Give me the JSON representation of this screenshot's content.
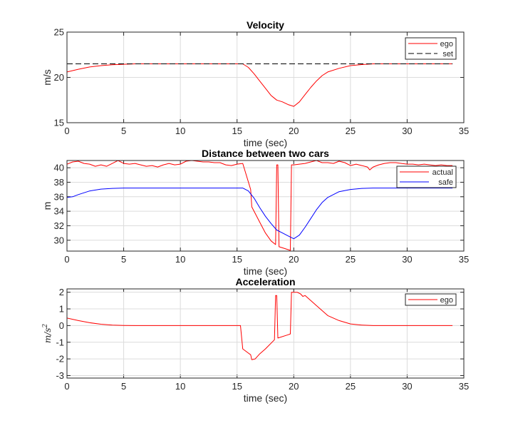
{
  "chart_data": [
    {
      "type": "line",
      "title": "Velocity",
      "xlabel": "time (sec)",
      "ylabel": "m/s",
      "xlim": [
        0,
        35
      ],
      "ylim": [
        15,
        25
      ],
      "xticks": [
        "0",
        "5",
        "10",
        "15",
        "20",
        "25",
        "30",
        "35"
      ],
      "yticks": [
        "15",
        "20",
        "25"
      ],
      "grid": true,
      "legend_position": "top-right",
      "series": [
        {
          "name": "ego",
          "color": "#ff0000",
          "dash": false,
          "points": [
            [
              0,
              20.6
            ],
            [
              1,
              20.9
            ],
            [
              2,
              21.15
            ],
            [
              3,
              21.3
            ],
            [
              4,
              21.4
            ],
            [
              5,
              21.45
            ],
            [
              6,
              21.5
            ],
            [
              15.5,
              21.5
            ],
            [
              16,
              21.1
            ],
            [
              16.5,
              20.4
            ],
            [
              17,
              19.6
            ],
            [
              17.5,
              18.8
            ],
            [
              18,
              18.0
            ],
            [
              18.5,
              17.5
            ],
            [
              19,
              17.3
            ],
            [
              19.5,
              17.0
            ],
            [
              20,
              16.8
            ],
            [
              20.5,
              17.3
            ],
            [
              21,
              18.1
            ],
            [
              21.5,
              18.9
            ],
            [
              22,
              19.6
            ],
            [
              22.5,
              20.2
            ],
            [
              23,
              20.6
            ],
            [
              24,
              21.0
            ],
            [
              25,
              21.3
            ],
            [
              26,
              21.42
            ],
            [
              27,
              21.5
            ],
            [
              34,
              21.5
            ]
          ]
        },
        {
          "name": "set",
          "color": "#000000",
          "dash": true,
          "points": [
            [
              0,
              21.5
            ],
            [
              34,
              21.5
            ]
          ]
        }
      ]
    },
    {
      "type": "line",
      "title": "Distance between two cars",
      "xlabel": "time (sec)",
      "ylabel": "m",
      "xlim": [
        0,
        35
      ],
      "ylim": [
        28.5,
        41
      ],
      "xticks": [
        "0",
        "5",
        "10",
        "15",
        "20",
        "25",
        "30",
        "35"
      ],
      "yticks": [
        "30",
        "32",
        "34",
        "36",
        "38",
        "40"
      ],
      "grid": true,
      "legend_position": "top-right",
      "series": [
        {
          "name": "actual",
          "color": "#ff0000",
          "dash": false,
          "points": [
            [
              0,
              40.5
            ],
            [
              0.5,
              40.8
            ],
            [
              1,
              40.9
            ],
            [
              1.5,
              40.6
            ],
            [
              2,
              40.5
            ],
            [
              2.5,
              40.2
            ],
            [
              3,
              40.4
            ],
            [
              3.5,
              40.2
            ],
            [
              4,
              40.6
            ],
            [
              4.5,
              41.0
            ],
            [
              5,
              40.6
            ],
            [
              5.5,
              40.5
            ],
            [
              6,
              40.6
            ],
            [
              6.5,
              40.4
            ],
            [
              7,
              40.2
            ],
            [
              7.5,
              40.3
            ],
            [
              8,
              40.1
            ],
            [
              8.5,
              40.4
            ],
            [
              9,
              40.6
            ],
            [
              9.5,
              40.4
            ],
            [
              10,
              40.5
            ],
            [
              10.5,
              40.9
            ],
            [
              11,
              41.0
            ],
            [
              11.5,
              40.9
            ],
            [
              12,
              40.8
            ],
            [
              12.5,
              40.8
            ],
            [
              13,
              40.7
            ],
            [
              13.5,
              40.7
            ],
            [
              14,
              40.4
            ],
            [
              14.5,
              40.3
            ],
            [
              15,
              40.5
            ],
            [
              15.5,
              40.6
            ],
            [
              16.2,
              37.0
            ],
            [
              16.3,
              34.6
            ],
            [
              17,
              32.5
            ],
            [
              17.5,
              31.0
            ],
            [
              18,
              29.9
            ],
            [
              18.4,
              29.4
            ],
            [
              18.5,
              40.4
            ],
            [
              18.6,
              40.4
            ],
            [
              18.7,
              29.1
            ],
            [
              19,
              28.95
            ],
            [
              19.7,
              28.6
            ],
            [
              19.8,
              40.4
            ],
            [
              20,
              40.4
            ],
            [
              20.5,
              40.5
            ],
            [
              21,
              40.6
            ],
            [
              21.5,
              40.8
            ],
            [
              22,
              41.0
            ],
            [
              22.5,
              40.7
            ],
            [
              23,
              40.7
            ],
            [
              23.5,
              40.6
            ],
            [
              24,
              40.9
            ],
            [
              24.5,
              40.7
            ],
            [
              25,
              40.3
            ],
            [
              25.5,
              40.5
            ],
            [
              26,
              40.3
            ],
            [
              26.5,
              40.1
            ],
            [
              26.7,
              39.7
            ],
            [
              27,
              40.1
            ],
            [
              27.5,
              40.4
            ],
            [
              28,
              40.6
            ],
            [
              28.5,
              40.7
            ],
            [
              29,
              40.7
            ],
            [
              29.5,
              40.6
            ],
            [
              30,
              40.5
            ],
            [
              30.5,
              40.5
            ],
            [
              31,
              40.4
            ],
            [
              31.5,
              40.5
            ],
            [
              32,
              40.4
            ],
            [
              32.5,
              40.3
            ],
            [
              33,
              40.4
            ],
            [
              33.5,
              40.3
            ],
            [
              34,
              40.3
            ]
          ]
        },
        {
          "name": "safe",
          "color": "#0000ff",
          "dash": false,
          "points": [
            [
              0,
              35.9
            ],
            [
              0.5,
              36.0
            ],
            [
              1,
              36.3
            ],
            [
              2,
              36.8
            ],
            [
              3,
              37.05
            ],
            [
              4,
              37.15
            ],
            [
              5,
              37.2
            ],
            [
              15.5,
              37.2
            ],
            [
              16,
              36.8
            ],
            [
              16.5,
              35.8
            ],
            [
              17,
              34.5
            ],
            [
              17.5,
              33.3
            ],
            [
              18,
              32.3
            ],
            [
              18.5,
              31.4
            ],
            [
              19,
              31.0
            ],
            [
              19.5,
              30.6
            ],
            [
              20,
              30.2
            ],
            [
              20.5,
              30.7
            ],
            [
              21,
              31.8
            ],
            [
              21.5,
              33.0
            ],
            [
              22,
              34.2
            ],
            [
              22.5,
              35.2
            ],
            [
              23,
              35.9
            ],
            [
              24,
              36.7
            ],
            [
              25,
              37.0
            ],
            [
              26,
              37.15
            ],
            [
              27,
              37.2
            ],
            [
              34,
              37.2
            ]
          ]
        }
      ]
    },
    {
      "type": "line",
      "title": "Acceleration",
      "xlabel": "time (sec)",
      "ylabel": "m/s",
      "ylabel_sup": "2",
      "xlim": [
        0,
        35
      ],
      "ylim": [
        -3.15,
        2.2
      ],
      "xticks": [
        "0",
        "5",
        "10",
        "15",
        "20",
        "25",
        "30",
        "35"
      ],
      "yticks": [
        "-3",
        "-2",
        "-1",
        "0",
        "1",
        "2"
      ],
      "grid": true,
      "legend_position": "top-right",
      "series": [
        {
          "name": "ego",
          "color": "#ff0000",
          "dash": false,
          "points": [
            [
              0,
              0.45
            ],
            [
              1,
              0.3
            ],
            [
              2,
              0.17
            ],
            [
              3,
              0.08
            ],
            [
              4,
              0.03
            ],
            [
              5,
              0.01
            ],
            [
              6,
              0
            ],
            [
              15.3,
              0
            ],
            [
              15.5,
              -1.4
            ],
            [
              16,
              -1.65
            ],
            [
              16.2,
              -1.75
            ],
            [
              16.3,
              -2.05
            ],
            [
              16.6,
              -2.0
            ],
            [
              17,
              -1.7
            ],
            [
              17.5,
              -1.4
            ],
            [
              18.3,
              -0.85
            ],
            [
              18.4,
              1.8
            ],
            [
              18.5,
              1.8
            ],
            [
              18.6,
              -0.75
            ],
            [
              19.5,
              -0.55
            ],
            [
              19.7,
              -0.5
            ],
            [
              19.8,
              2.0
            ],
            [
              20.3,
              2.0
            ],
            [
              20.6,
              1.9
            ],
            [
              20.8,
              1.75
            ],
            [
              21,
              1.8
            ],
            [
              22,
              1.2
            ],
            [
              23,
              0.6
            ],
            [
              24,
              0.3
            ],
            [
              25,
              0.1
            ],
            [
              26,
              0.03
            ],
            [
              27,
              0
            ],
            [
              34,
              0
            ]
          ]
        }
      ]
    }
  ]
}
